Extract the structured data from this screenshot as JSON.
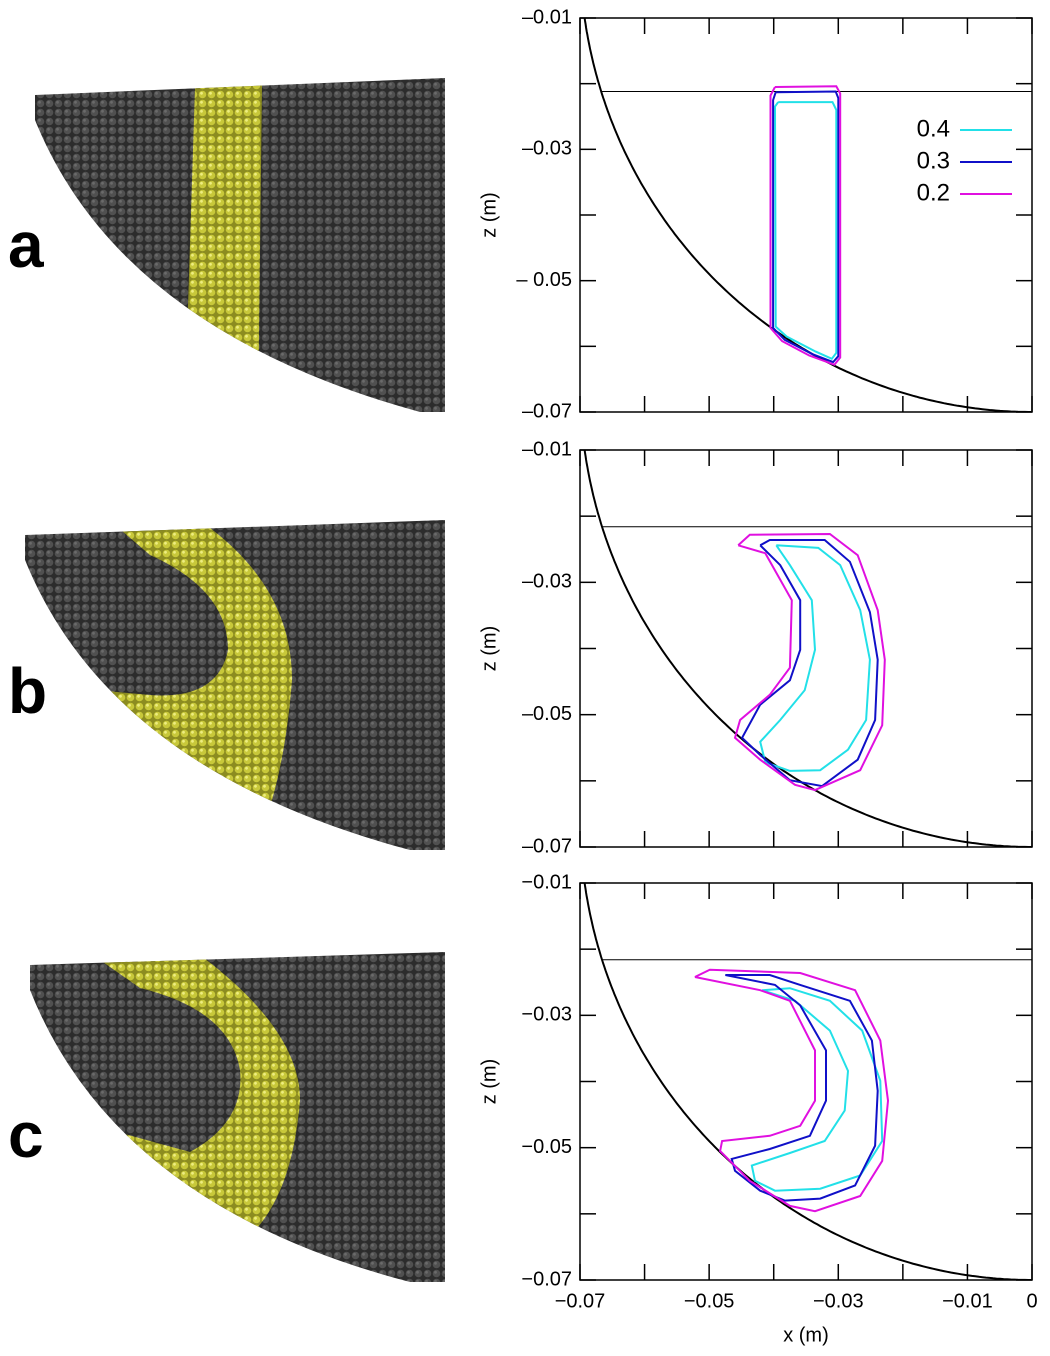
{
  "chart_data": [
    {
      "type": "line",
      "label": "a",
      "ylabel": "z (m)",
      "legend": "upper right",
      "drum_radius": 0.07,
      "fill_level": -0.0212,
      "xlim": [
        -0.07,
        0
      ],
      "ylim": [
        -0.07,
        -0.01
      ],
      "xticks": [],
      "xminorticks": [
        -0.07,
        -0.06,
        -0.05,
        -0.04,
        -0.03,
        -0.02,
        -0.01,
        0
      ],
      "yticks": [
        {
          "value": -0.01,
          "label": "–0.01"
        },
        {
          "value": -0.03,
          "label": "–0.03"
        },
        {
          "value": -0.05,
          "label": "– 0.05"
        },
        {
          "value": -0.07,
          "label": "–0.07"
        }
      ],
      "yminorticks": [
        -0.02,
        -0.04,
        -0.06
      ],
      "series": [
        {
          "name": "0.4",
          "color": "#22e0e8",
          "x": [
            -0.0393,
            -0.0309,
            -0.0303,
            -0.0303,
            -0.031,
            -0.0335,
            -0.038,
            -0.0397,
            -0.0398,
            -0.0393
          ],
          "values": [
            -0.0228,
            -0.0228,
            -0.024,
            -0.061,
            -0.0619,
            -0.0608,
            -0.0585,
            -0.057,
            -0.0235,
            -0.0228
          ]
        },
        {
          "name": "0.3",
          "color": "#1010c8",
          "x": [
            -0.0397,
            -0.0304,
            -0.03,
            -0.03,
            -0.0308,
            -0.034,
            -0.0383,
            -0.0401,
            -0.0401,
            -0.0397
          ],
          "values": [
            -0.0213,
            -0.0212,
            -0.0222,
            -0.0615,
            -0.0624,
            -0.0612,
            -0.059,
            -0.0572,
            -0.0225,
            -0.0213
          ]
        },
        {
          "name": "0.2",
          "color": "#e010e0",
          "x": [
            -0.0398,
            -0.0303,
            -0.0297,
            -0.0297,
            -0.0306,
            -0.0345,
            -0.0387,
            -0.0405,
            -0.0405,
            -0.0398
          ],
          "values": [
            -0.0205,
            -0.0204,
            -0.0215,
            -0.0617,
            -0.0628,
            -0.0614,
            -0.0592,
            -0.0572,
            -0.0218,
            -0.0205
          ]
        }
      ]
    },
    {
      "type": "line",
      "label": "b",
      "ylabel": "z (m)",
      "drum_radius": 0.07,
      "fill_level": -0.0216,
      "xlim": [
        -0.07,
        0
      ],
      "ylim": [
        -0.07,
        -0.01
      ],
      "xticks": [],
      "xminorticks": [
        -0.07,
        -0.06,
        -0.05,
        -0.04,
        -0.03,
        -0.02,
        -0.01,
        0
      ],
      "yticks": [
        {
          "value": -0.01,
          "label": "–0.01"
        },
        {
          "value": -0.03,
          "label": "–0.03"
        },
        {
          "value": -0.05,
          "label": "–0.05"
        },
        {
          "value": -0.07,
          "label": "–0.07"
        }
      ],
      "yminorticks": [
        -0.02,
        -0.04,
        -0.06
      ],
      "series": [
        {
          "color": "#22e0e8",
          "x": [
            -0.0396,
            -0.0331,
            -0.0297,
            -0.0266,
            -0.0251,
            -0.0257,
            -0.0285,
            -0.0328,
            -0.0375,
            -0.0413,
            -0.0421,
            -0.039,
            -0.0352,
            -0.0336,
            -0.0341,
            -0.0375,
            -0.0396
          ],
          "values": [
            -0.0244,
            -0.0248,
            -0.0274,
            -0.0342,
            -0.0417,
            -0.0508,
            -0.0553,
            -0.0584,
            -0.0585,
            -0.0572,
            -0.0541,
            -0.0508,
            -0.0463,
            -0.0402,
            -0.0327,
            -0.0274,
            -0.0244
          ]
        },
        {
          "color": "#1010c8",
          "x": [
            -0.0421,
            -0.0406,
            -0.0321,
            -0.0282,
            -0.0251,
            -0.0239,
            -0.0243,
            -0.027,
            -0.0325,
            -0.0375,
            -0.0421,
            -0.0449,
            -0.0421,
            -0.0375,
            -0.0359,
            -0.0359,
            -0.039,
            -0.0421
          ],
          "values": [
            -0.0244,
            -0.0236,
            -0.0236,
            -0.0269,
            -0.0345,
            -0.0417,
            -0.0508,
            -0.0568,
            -0.0608,
            -0.0599,
            -0.0561,
            -0.0535,
            -0.0485,
            -0.0448,
            -0.0402,
            -0.0327,
            -0.0274,
            -0.0244
          ]
        },
        {
          "color": "#e010e0",
          "x": [
            -0.0455,
            -0.0437,
            -0.0313,
            -0.027,
            -0.0239,
            -0.0228,
            -0.0232,
            -0.0266,
            -0.0336,
            -0.0367,
            -0.0421,
            -0.046,
            -0.0452,
            -0.0406,
            -0.0375,
            -0.0372,
            -0.0413,
            -0.0455
          ],
          "values": [
            -0.0244,
            -0.0228,
            -0.0227,
            -0.0259,
            -0.0342,
            -0.0417,
            -0.0516,
            -0.0584,
            -0.0614,
            -0.0606,
            -0.0568,
            -0.0535,
            -0.0508,
            -0.047,
            -0.0429,
            -0.0327,
            -0.0256,
            -0.0244
          ]
        }
      ]
    },
    {
      "type": "line",
      "label": "c",
      "ylabel": "z (m)",
      "xlabel": "x (m)",
      "drum_radius": 0.07,
      "fill_level": -0.0216,
      "xlim": [
        -0.07,
        0
      ],
      "ylim": [
        -0.07,
        -0.01
      ],
      "xticks": [
        {
          "value": -0.07,
          "label": "−0.07"
        },
        {
          "value": -0.05,
          "label": "−0.05"
        },
        {
          "value": -0.03,
          "label": "−0.03"
        },
        {
          "value": -0.01,
          "label": "−0.01"
        },
        0
      ],
      "xminorticks": [
        -0.06,
        -0.04,
        -0.02
      ],
      "yticks": [
        {
          "value": -0.01,
          "label": "−0.01"
        },
        {
          "value": -0.03,
          "label": "−0.03"
        },
        {
          "value": -0.05,
          "label": "−0.05"
        },
        {
          "value": -0.07,
          "label": "−0.07"
        }
      ],
      "yminorticks": [
        -0.02,
        -0.04,
        -0.06
      ],
      "series": [
        {
          "color": "#22e0e8",
          "x": [
            -0.0418,
            -0.0375,
            -0.0313,
            -0.0263,
            -0.0235,
            -0.0232,
            -0.0266,
            -0.0328,
            -0.0398,
            -0.0429,
            -0.0434,
            -0.0375,
            -0.0321,
            -0.029,
            -0.0285,
            -0.0313,
            -0.0367,
            -0.0418
          ],
          "values": [
            -0.0262,
            -0.0259,
            -0.0278,
            -0.0323,
            -0.0399,
            -0.049,
            -0.0542,
            -0.0562,
            -0.0565,
            -0.055,
            -0.0527,
            -0.0508,
            -0.049,
            -0.0444,
            -0.0384,
            -0.0323,
            -0.0278,
            -0.0262
          ]
        },
        {
          "color": "#1010c8",
          "x": [
            -0.0475,
            -0.0406,
            -0.0359,
            -0.0282,
            -0.0248,
            -0.0239,
            -0.0243,
            -0.0274,
            -0.0328,
            -0.0383,
            -0.0421,
            -0.046,
            -0.0465,
            -0.0406,
            -0.0344,
            -0.0319,
            -0.0319,
            -0.0359,
            -0.0398,
            -0.0475
          ],
          "values": [
            -0.0239,
            -0.0239,
            -0.0254,
            -0.0278,
            -0.0338,
            -0.0414,
            -0.0497,
            -0.0557,
            -0.0577,
            -0.058,
            -0.0565,
            -0.0535,
            -0.0517,
            -0.0502,
            -0.0482,
            -0.0429,
            -0.0353,
            -0.0285,
            -0.0254,
            -0.0239
          ]
        },
        {
          "color": "#e010e0",
          "x": [
            -0.0522,
            -0.0499,
            -0.0359,
            -0.0274,
            -0.0235,
            -0.0223,
            -0.0232,
            -0.0266,
            -0.0336,
            -0.0375,
            -0.0437,
            -0.0483,
            -0.048,
            -0.0406,
            -0.0359,
            -0.0336,
            -0.0336,
            -0.0375,
            -0.0421,
            -0.0522
          ],
          "values": [
            -0.0242,
            -0.0231,
            -0.0236,
            -0.0262,
            -0.0338,
            -0.0429,
            -0.052,
            -0.0573,
            -0.0596,
            -0.0588,
            -0.055,
            -0.0505,
            -0.049,
            -0.0482,
            -0.0467,
            -0.0429,
            -0.0353,
            -0.0278,
            -0.0262,
            -0.0242
          ]
        }
      ]
    }
  ]
}
